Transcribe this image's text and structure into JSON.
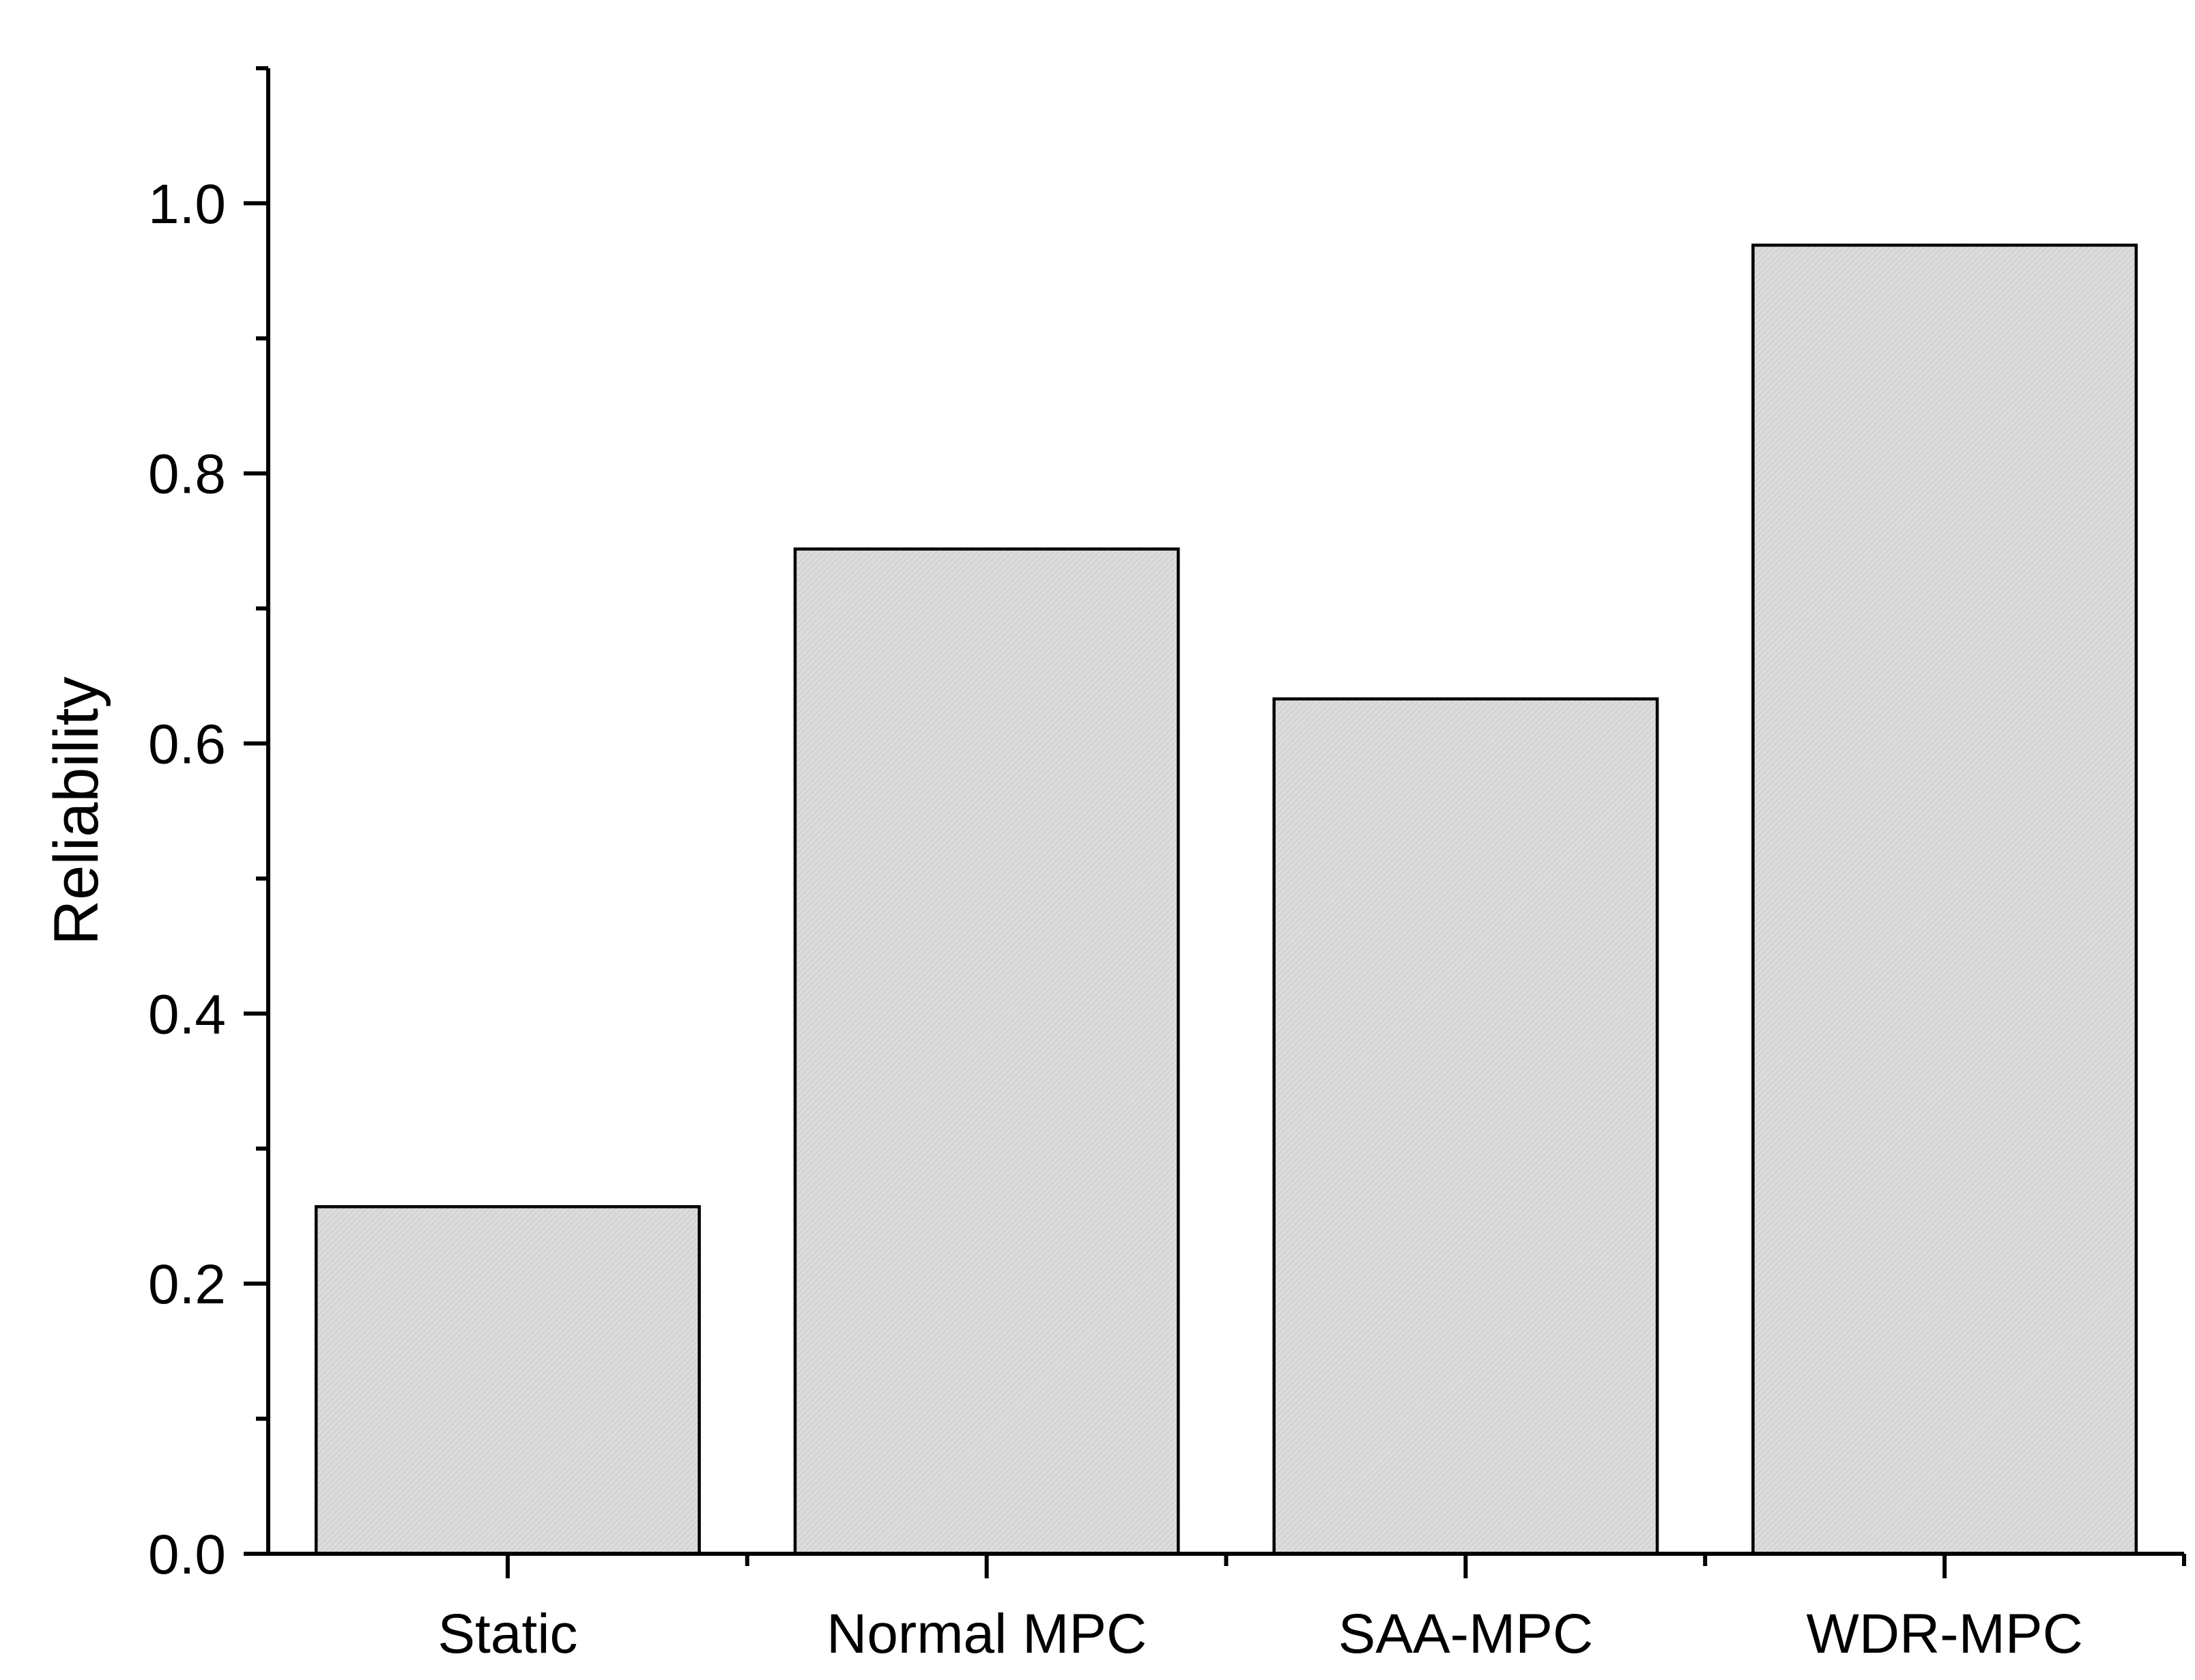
{
  "chart_data": {
    "type": "bar",
    "categories": [
      "Static",
      "Normal MPC",
      "SAA-MPC",
      "WDR-MPC"
    ],
    "values": [
      0.257,
      0.744,
      0.633,
      0.969
    ],
    "xlabel": "",
    "ylabel": "Reliability",
    "ylim": [
      0,
      1.1
    ],
    "yticks": [
      0.0,
      0.2,
      0.4,
      0.6,
      0.8,
      1.0
    ],
    "ytick_labels": [
      "0.0",
      "0.2",
      "0.4",
      "0.6",
      "0.8",
      "1.0"
    ],
    "grid": false,
    "legend": "none",
    "colors": {
      "bar_fill": "#dcdcdc",
      "bar_hatch": "#c4c4c4",
      "bar_edge": "#000000",
      "axis": "#000000"
    }
  }
}
